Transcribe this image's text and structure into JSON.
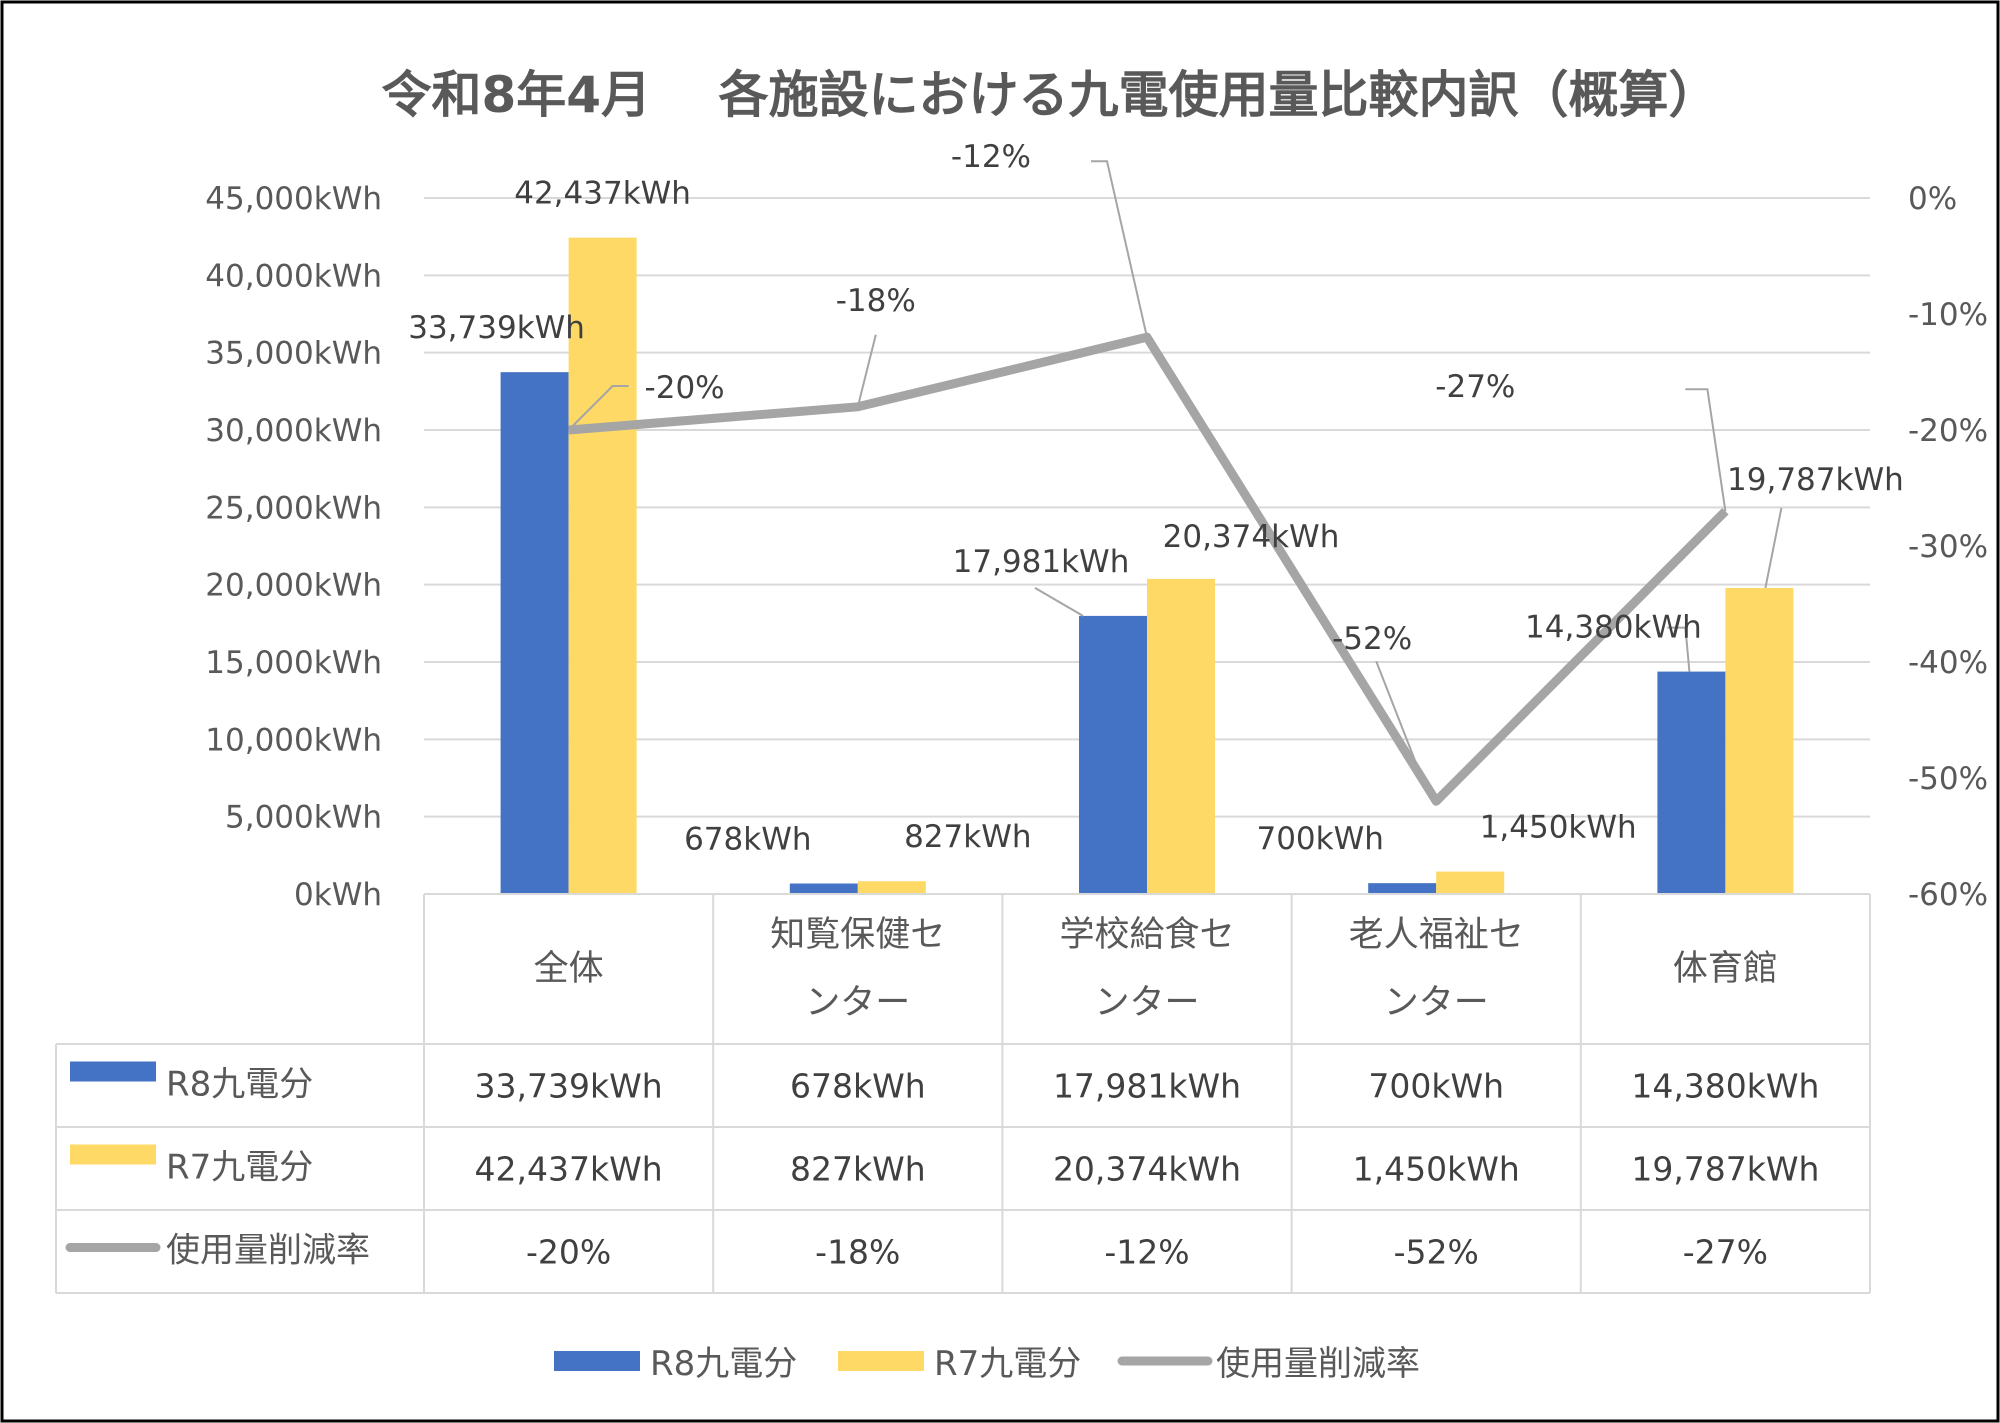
{
  "chart_data": {
    "type": "bar",
    "title": "令和8年4月　 各施設における九電使用量比較内訳（概算）",
    "categories": [
      "全体",
      "知覧保健センター",
      "学校給食センター",
      "老人福祉センター",
      "体育館"
    ],
    "category_lines": [
      [
        "全体"
      ],
      [
        "知覧保健セ",
        "ンター"
      ],
      [
        "学校給食セ",
        "ンター"
      ],
      [
        "老人福祉セ",
        "ンター"
      ],
      [
        "体育館"
      ]
    ],
    "series": [
      {
        "name": "R8九電分",
        "type": "bar",
        "axis": "left",
        "color": "#4472C4",
        "values": [
          33739,
          678,
          17981,
          700,
          14380
        ],
        "labels": [
          "33,739kWh",
          "678kWh",
          "17,981kWh",
          "700kWh",
          "14,380kWh"
        ]
      },
      {
        "name": "R7九電分",
        "type": "bar",
        "axis": "left",
        "color": "#FFD966",
        "values": [
          42437,
          827,
          20374,
          1450,
          19787
        ],
        "labels": [
          "42,437kWh",
          "827kWh",
          "20,374kWh",
          "1,450kWh",
          "19,787kWh"
        ]
      },
      {
        "name": "使用量削減率",
        "type": "line",
        "axis": "right",
        "color": "#A5A5A5",
        "values": [
          -20,
          -18,
          -12,
          -52,
          -27
        ],
        "labels": [
          "-20%",
          "-18%",
          "-12%",
          "-52%",
          "-27%"
        ]
      }
    ],
    "y_left": {
      "ylim": [
        0,
        45000
      ],
      "ticks": [
        0,
        5000,
        10000,
        15000,
        20000,
        25000,
        30000,
        35000,
        40000,
        45000
      ],
      "tick_labels": [
        "0kWh",
        "5,000kWh",
        "10,000kWh",
        "15,000kWh",
        "20,000kWh",
        "25,000kWh",
        "30,000kWh",
        "35,000kWh",
        "40,000kWh",
        "45,000kWh"
      ]
    },
    "y_right": {
      "ylim": [
        -60,
        0
      ],
      "ticks": [
        0,
        -10,
        -20,
        -30,
        -40,
        -50,
        -60
      ],
      "tick_labels": [
        "0%",
        "-10%",
        "-20%",
        "-30%",
        "-40%",
        "-50%",
        "-60%"
      ]
    },
    "grid": true,
    "data_table": true,
    "legend_position": "bottom"
  }
}
